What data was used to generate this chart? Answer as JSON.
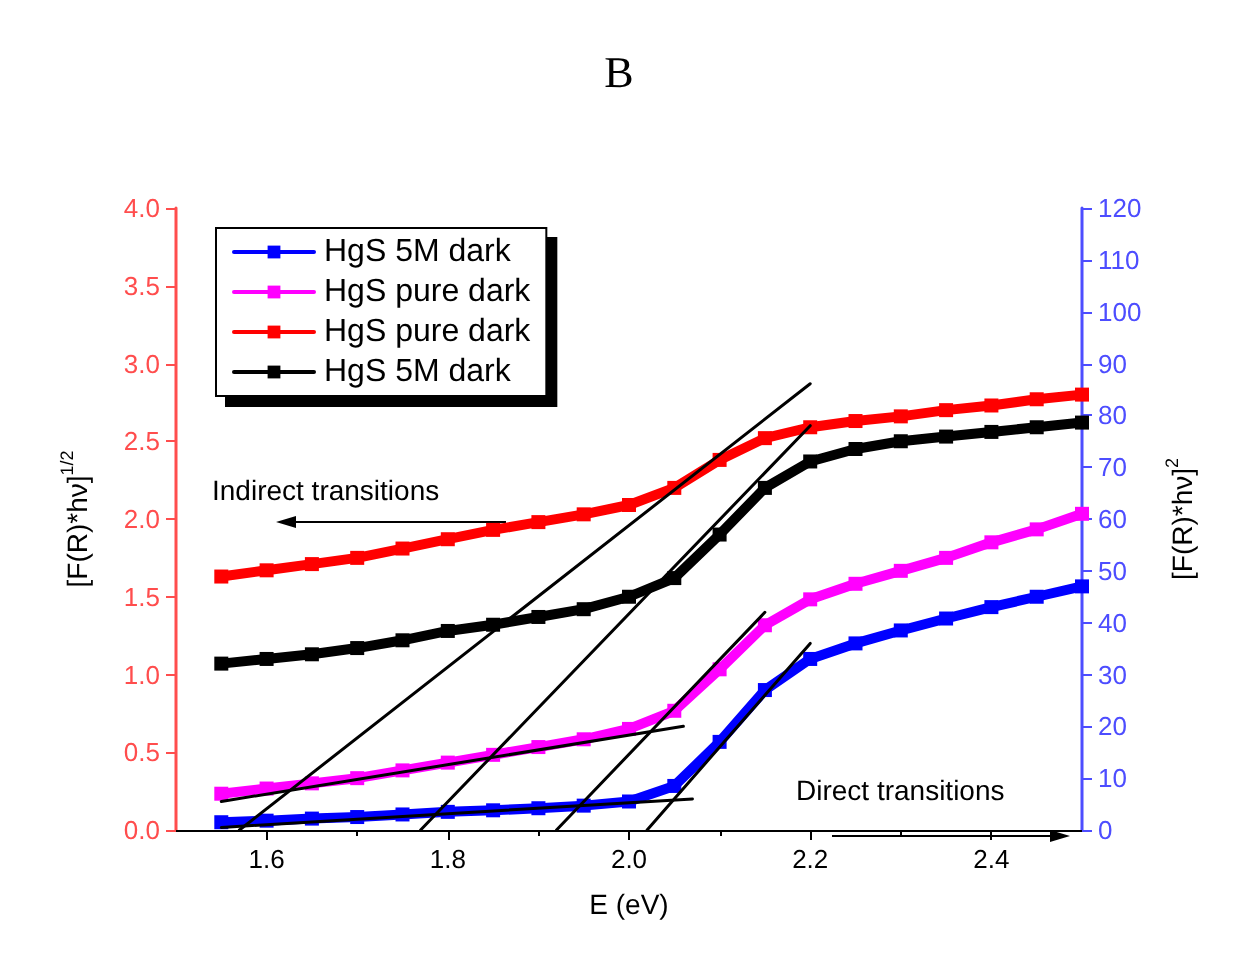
{
  "chart_data": {
    "type": "line",
    "title": "B",
    "xlabel": "E (eV)",
    "ylabel": "[F(R)*hν]$^{1/2}$",
    "y2label": "[F(R)*hν]$^{2}$",
    "annotations": [
      "Indirect transitions",
      "Direct transitions"
    ],
    "x": [
      1.55,
      1.6,
      1.65,
      1.7,
      1.75,
      1.8,
      1.85,
      1.9,
      1.95,
      2.0,
      2.05,
      2.1,
      2.15,
      2.2,
      2.25,
      2.3,
      2.35,
      2.4,
      2.45,
      2.5
    ],
    "series": [
      {
        "name": "HgS 5M dark",
        "color": "#0000ff",
        "axis": "y2",
        "values": [
          1.5,
          1.8,
          2.2,
          2.5,
          3,
          3.5,
          3.8,
          4.2,
          4.7,
          5.5,
          8.5,
          17,
          27,
          33,
          36,
          38.5,
          40.8,
          43,
          45,
          47
        ]
      },
      {
        "name": "HgS pure dark",
        "color": "#ff00ff",
        "axis": "y2",
        "values": [
          7,
          8,
          9,
          10,
          11.5,
          13,
          14.5,
          16,
          17.5,
          19.5,
          23,
          31,
          39.5,
          44.5,
          47.5,
          50,
          52.5,
          55.5,
          58,
          61
        ]
      },
      {
        "name": "HgS pure dark",
        "color": "#ff0000",
        "values": [
          1.63,
          1.67,
          1.71,
          1.75,
          1.81,
          1.87,
          1.93,
          1.98,
          2.03,
          2.09,
          2.2,
          2.38,
          2.52,
          2.59,
          2.63,
          2.66,
          2.7,
          2.73,
          2.77,
          2.8
        ]
      },
      {
        "name": "HgS 5M dark",
        "color": "#000000",
        "values": [
          1.07,
          1.1,
          1.13,
          1.17,
          1.22,
          1.28,
          1.32,
          1.37,
          1.42,
          1.5,
          1.62,
          1.9,
          2.2,
          2.37,
          2.45,
          2.5,
          2.53,
          2.56,
          2.59,
          2.62
        ]
      },
      {
        "type": "line",
        "color": "#000000",
        "marker": "none",
        "x": [
          1.57,
          2.2
        ],
        "values": [
          0,
          2.87
        ]
      },
      {
        "type": "line",
        "color": "#000000",
        "marker": "none",
        "x": [
          1.77,
          2.2
        ],
        "values": [
          0,
          2.6
        ]
      },
      {
        "type": "line",
        "color": "#000000",
        "marker": "none",
        "axis": "y2",
        "x": [
          1.92,
          2.15
        ],
        "values": [
          0,
          42
        ]
      },
      {
        "type": "line",
        "color": "#000000",
        "marker": "none",
        "axis": "y2",
        "x": [
          2.02,
          2.2
        ],
        "values": [
          0,
          36
        ]
      },
      {
        "type": "line",
        "color": "#000000",
        "marker": "none",
        "axis": "y2",
        "x": [
          1.55,
          2.06
        ],
        "values": [
          5.5,
          20
        ]
      },
      {
        "type": "line",
        "color": "#000000",
        "marker": "none",
        "axis": "y2",
        "x": [
          1.55,
          2.07
        ],
        "values": [
          0.5,
          6
        ]
      }
    ],
    "xlim": [
      1.5,
      2.5
    ],
    "xticks": [
      1.6,
      1.8,
      {
        "value": 2.0,
        "label": "2.0"
      },
      2.2,
      2.4
    ],
    "ylim": [
      0,
      4
    ],
    "yticks": [
      {
        "value": 0,
        "label": "0.0"
      },
      0.5,
      {
        "value": 1,
        "label": "1.0"
      },
      1.5,
      {
        "value": 2,
        "label": "2.0"
      },
      2.5,
      {
        "value": 3,
        "label": "3.0"
      },
      3.5,
      {
        "value": 4,
        "label": "4.0"
      }
    ],
    "y2lim": [
      0,
      120
    ],
    "y2ticks": [
      0,
      10,
      20,
      30,
      40,
      50,
      60,
      70,
      80,
      90,
      100,
      110,
      120
    ],
    "marker": "square",
    "grid": false,
    "legend": "top left"
  }
}
